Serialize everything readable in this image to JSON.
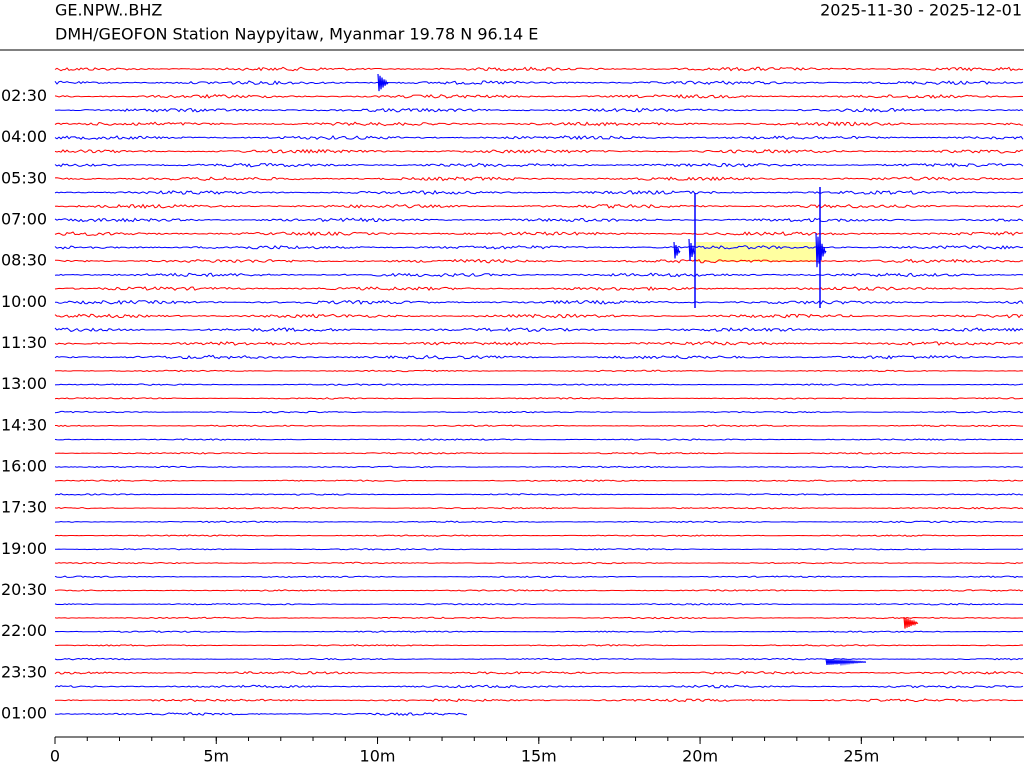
{
  "chart_data": {
    "type": "helicorder",
    "title": "GE.NPW..BHZ",
    "subtitle": "DMH/GEOFON Station Naypyitaw, Myanmar  19.78 N 96.14 E",
    "date_range": "2025-11-30 - 2025-12-01",
    "colors": [
      "#ff0000",
      "#0000ff"
    ],
    "xlim": [
      0,
      30
    ],
    "xticks": [
      {
        "value": 0,
        "label": "0"
      },
      {
        "value": 5,
        "label": "5m"
      },
      {
        "value": 10,
        "label": "10m"
      },
      {
        "value": 15,
        "label": "15m"
      },
      {
        "value": 20,
        "label": "20m"
      },
      {
        "value": 25,
        "label": "25m"
      }
    ],
    "ylim": [
      1.5,
      25
    ],
    "yticks": [
      {
        "value": 2.5,
        "label": "02:30"
      },
      {
        "value": 4,
        "label": "04:00"
      },
      {
        "value": 5.5,
        "label": "05:30"
      },
      {
        "value": 7,
        "label": "07:00"
      },
      {
        "value": 8.5,
        "label": "08:30"
      },
      {
        "value": 10,
        "label": "10:00"
      },
      {
        "value": 11.5,
        "label": "11:30"
      },
      {
        "value": 13,
        "label": "13:00"
      },
      {
        "value": 14.5,
        "label": "14:30"
      },
      {
        "value": 16,
        "label": "16:00"
      },
      {
        "value": 17.5,
        "label": "17:30"
      },
      {
        "value": 19,
        "label": "19:00"
      },
      {
        "value": 20.5,
        "label": "20:30"
      },
      {
        "value": 22,
        "label": "22:00"
      },
      {
        "value": 23.5,
        "label": "23:30"
      },
      {
        "value": 25,
        "label": "01:00"
      }
    ]
  }
}
